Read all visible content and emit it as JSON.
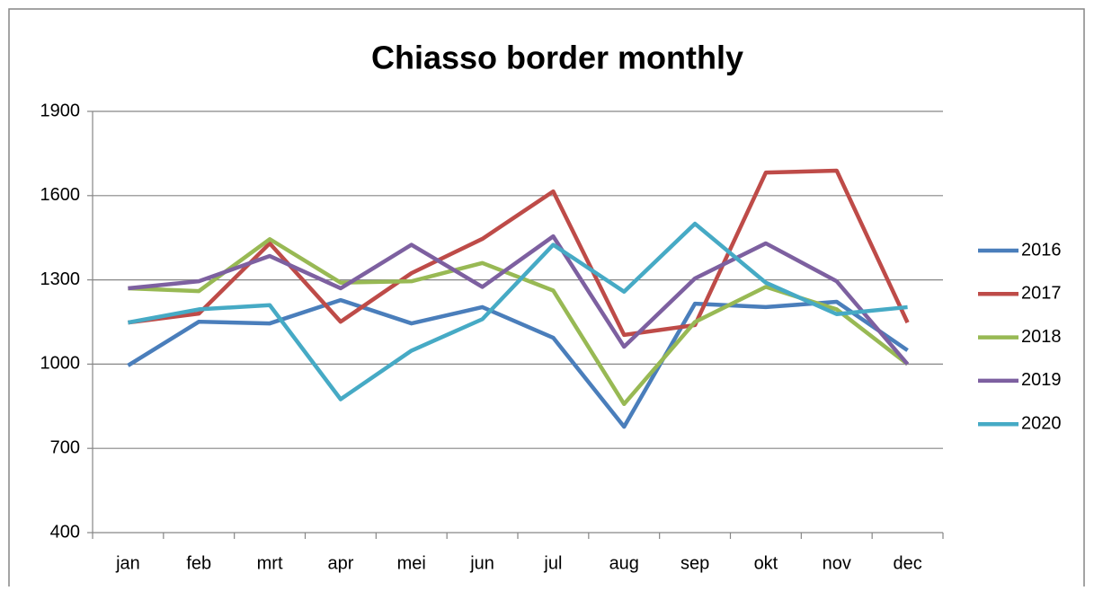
{
  "chart_data": {
    "type": "line",
    "title": "Chiasso border monthly",
    "categories": [
      "jan",
      "feb",
      "mrt",
      "apr",
      "mei",
      "jun",
      "jul",
      "aug",
      "sep",
      "okt",
      "nov",
      "dec"
    ],
    "series": [
      {
        "name": "2016",
        "color": "#4a7ebb",
        "values": [
          995,
          1151,
          1145,
          1228,
          1145,
          1203,
          1094,
          777,
          1215,
          1203,
          1222,
          1049
        ]
      },
      {
        "name": "2017",
        "color": "#be4b48",
        "values": [
          1148,
          1180,
          1430,
          1151,
          1324,
          1446,
          1615,
          1104,
          1139,
          1682,
          1689,
          1148
        ]
      },
      {
        "name": "2018",
        "color": "#98b954",
        "values": [
          1270,
          1260,
          1445,
          1290,
          1295,
          1360,
          1262,
          858,
          1150,
          1275,
          1195,
          1000
        ]
      },
      {
        "name": "2019",
        "color": "#7d60a0",
        "values": [
          1270,
          1295,
          1385,
          1270,
          1425,
          1275,
          1455,
          1062,
          1305,
          1430,
          1295,
          1000
        ]
      },
      {
        "name": "2020",
        "color": "#46aac5",
        "values": [
          1148,
          1195,
          1210,
          875,
          1048,
          1160,
          1425,
          1258,
          1500,
          1290,
          1178,
          1203
        ]
      }
    ],
    "ylim": [
      400,
      1900
    ],
    "yticks": [
      400,
      700,
      1000,
      1300,
      1600,
      1900
    ],
    "grid": true,
    "legend": "right"
  }
}
